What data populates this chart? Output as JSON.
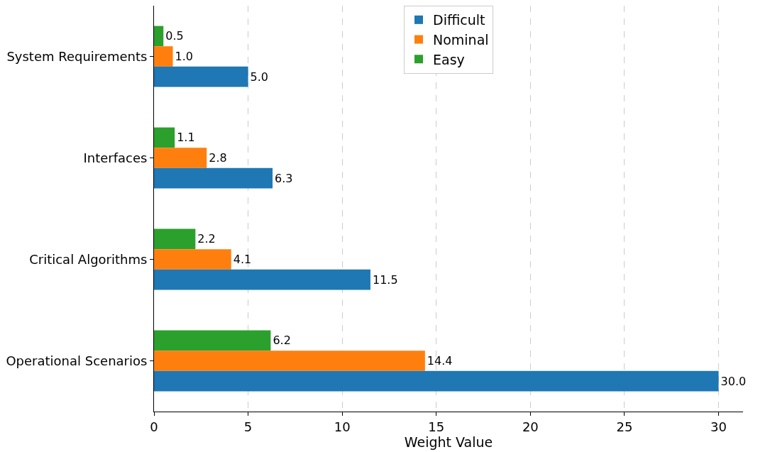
{
  "chart_data": {
    "type": "bar",
    "orientation": "horizontal",
    "xlabel": "Weight Value",
    "categories": [
      "System Requirements",
      "Interfaces",
      "Critical Algorithms",
      "Operational Scenarios"
    ],
    "series": [
      {
        "name": "Difficult",
        "color": "#1f77b4",
        "values": [
          5.0,
          6.3,
          11.5,
          30.0
        ],
        "value_labels": [
          "5.0",
          "6.3",
          "11.5",
          "30.0"
        ]
      },
      {
        "name": "Nominal",
        "color": "#ff7f0e",
        "values": [
          1.0,
          2.8,
          4.1,
          14.4
        ],
        "value_labels": [
          "1.0",
          "2.8",
          "4.1",
          "14.4"
        ]
      },
      {
        "name": "Easy",
        "color": "#2ca02c",
        "values": [
          0.5,
          1.1,
          2.2,
          6.2
        ],
        "value_labels": [
          "0.5",
          "1.1",
          "2.2",
          "6.2"
        ]
      }
    ],
    "xlim": [
      0,
      31.3
    ],
    "xticks": [
      0,
      5,
      10,
      15,
      20,
      25,
      30
    ],
    "grid": "x",
    "legend": "top"
  }
}
